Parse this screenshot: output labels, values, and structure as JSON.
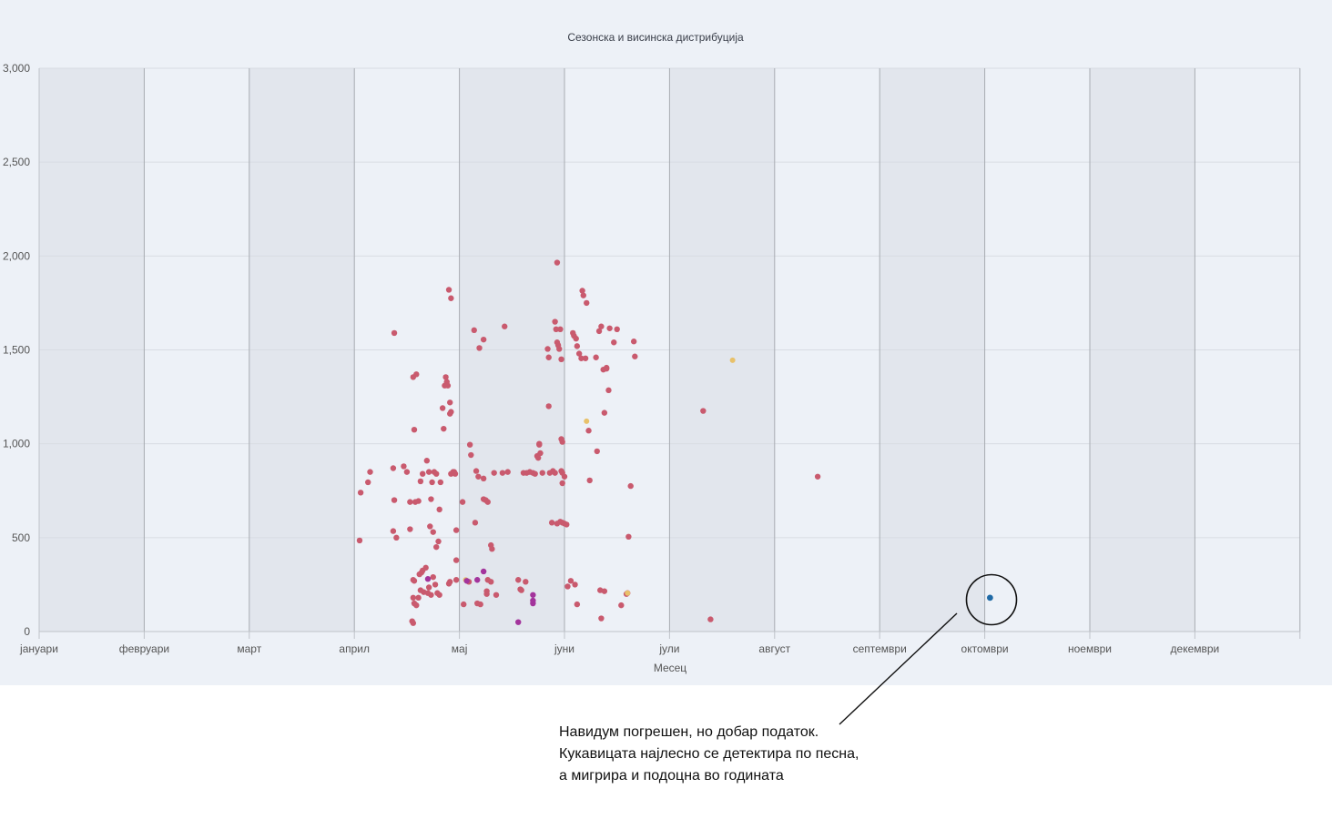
{
  "chart_data": {
    "type": "scatter",
    "title": "Сезонска и висинска дистрибуција",
    "xlabel": "Месец",
    "ylabel": "",
    "x_categories": [
      "јануари",
      "февруари",
      "март",
      "април",
      "мај",
      "јуни",
      "јули",
      "август",
      "септември",
      "октомври",
      "ноември",
      "декември"
    ],
    "xlim": [
      0,
      12
    ],
    "ylim": [
      0,
      3000
    ],
    "y_ticks": [
      0,
      500,
      1000,
      1500,
      2000,
      2500,
      3000
    ],
    "y_tick_labels": [
      "0",
      "500",
      "1,000",
      "1,500",
      "2,000",
      "2,500",
      "3,000"
    ],
    "grid": true,
    "alternating_month_bands": true,
    "legend": "none",
    "colors": {
      "default": "#c95a6e",
      "yellow": "#e8c16a",
      "purple": "#a3349c",
      "highlight": "#1f6aa6",
      "band": "#e2e6ed",
      "plot_bg": "#edf1f7",
      "grid": "#d8dce3",
      "axis": "#bfc3c9"
    },
    "points": {
      "default": [
        [
          3.06,
          740
        ],
        [
          3.05,
          485
        ],
        [
          3.13,
          795
        ],
        [
          3.15,
          850
        ],
        [
          3.37,
          535
        ],
        [
          3.4,
          500
        ],
        [
          3.37,
          870
        ],
        [
          3.47,
          880
        ],
        [
          3.5,
          850
        ],
        [
          3.38,
          700
        ],
        [
          3.53,
          690
        ],
        [
          3.58,
          690
        ],
        [
          3.61,
          695
        ],
        [
          3.53,
          545
        ],
        [
          3.38,
          1590
        ],
        [
          3.56,
          1355
        ],
        [
          3.59,
          1370
        ],
        [
          3.57,
          1075
        ],
        [
          3.63,
          800
        ],
        [
          3.65,
          840
        ],
        [
          3.69,
          910
        ],
        [
          3.71,
          850
        ],
        [
          3.74,
          795
        ],
        [
          3.76,
          850
        ],
        [
          3.78,
          840
        ],
        [
          3.72,
          560
        ],
        [
          3.73,
          705
        ],
        [
          3.75,
          530
        ],
        [
          3.78,
          450
        ],
        [
          3.8,
          480
        ],
        [
          3.81,
          650
        ],
        [
          3.82,
          795
        ],
        [
          3.85,
          1080
        ],
        [
          3.84,
          1190
        ],
        [
          3.86,
          1310
        ],
        [
          3.88,
          1330
        ],
        [
          3.87,
          1355
        ],
        [
          3.89,
          1310
        ],
        [
          3.91,
          1220
        ],
        [
          3.92,
          1170
        ],
        [
          3.91,
          1160
        ],
        [
          3.9,
          1820
        ],
        [
          3.92,
          1775
        ],
        [
          3.92,
          840
        ],
        [
          3.94,
          850
        ],
        [
          3.95,
          850
        ],
        [
          3.96,
          840
        ],
        [
          3.97,
          540
        ],
        [
          3.97,
          380
        ],
        [
          3.56,
          275
        ],
        [
          3.57,
          270
        ],
        [
          3.62,
          305
        ],
        [
          3.64,
          315
        ],
        [
          3.65,
          325
        ],
        [
          3.63,
          220
        ],
        [
          3.66,
          210
        ],
        [
          3.68,
          340
        ],
        [
          3.7,
          205
        ],
        [
          3.71,
          235
        ],
        [
          3.73,
          195
        ],
        [
          3.75,
          290
        ],
        [
          3.77,
          250
        ],
        [
          3.79,
          205
        ],
        [
          3.81,
          195
        ],
        [
          3.56,
          180
        ],
        [
          3.57,
          150
        ],
        [
          3.59,
          140
        ],
        [
          3.61,
          180
        ],
        [
          3.55,
          55
        ],
        [
          3.56,
          45
        ],
        [
          3.9,
          255
        ],
        [
          3.91,
          265
        ],
        [
          3.97,
          275
        ],
        [
          4.03,
          690
        ],
        [
          4.04,
          145
        ],
        [
          4.09,
          265
        ],
        [
          4.11,
          940
        ],
        [
          4.1,
          995
        ],
        [
          4.15,
          580
        ],
        [
          4.16,
          855
        ],
        [
          4.18,
          825
        ],
        [
          4.14,
          1605
        ],
        [
          4.19,
          1510
        ],
        [
          4.23,
          1555
        ],
        [
          4.17,
          150
        ],
        [
          4.2,
          145
        ],
        [
          4.23,
          705
        ],
        [
          4.25,
          700
        ],
        [
          4.27,
          690
        ],
        [
          4.23,
          815
        ],
        [
          4.3,
          460
        ],
        [
          4.31,
          440
        ],
        [
          4.27,
          275
        ],
        [
          4.3,
          265
        ],
        [
          4.35,
          195
        ],
        [
          4.26,
          215
        ],
        [
          4.26,
          200
        ],
        [
          4.33,
          845
        ],
        [
          4.41,
          845
        ],
        [
          4.46,
          850
        ],
        [
          4.43,
          1625
        ],
        [
          4.56,
          275
        ],
        [
          4.63,
          265
        ],
        [
          4.58,
          225
        ],
        [
          4.59,
          220
        ],
        [
          4.61,
          845
        ],
        [
          4.64,
          845
        ],
        [
          4.67,
          850
        ],
        [
          4.7,
          845
        ],
        [
          4.72,
          840
        ],
        [
          4.74,
          935
        ],
        [
          4.75,
          925
        ],
        [
          4.76,
          995
        ],
        [
          4.76,
          1000
        ],
        [
          4.77,
          950
        ],
        [
          4.79,
          845
        ],
        [
          4.86,
          845
        ],
        [
          4.89,
          855
        ],
        [
          4.91,
          845
        ],
        [
          4.97,
          1025
        ],
        [
          4.98,
          1010
        ],
        [
          4.97,
          855
        ],
        [
          4.98,
          845
        ],
        [
          5.0,
          825
        ],
        [
          4.98,
          790
        ],
        [
          4.98,
          580
        ],
        [
          5.0,
          575
        ],
        [
          5.02,
          570
        ],
        [
          4.88,
          580
        ],
        [
          4.93,
          575
        ],
        [
          4.96,
          585
        ],
        [
          4.84,
          1505
        ],
        [
          4.85,
          1460
        ],
        [
          4.85,
          1200
        ],
        [
          4.96,
          1610
        ],
        [
          4.91,
          1650
        ],
        [
          4.92,
          1610
        ],
        [
          4.93,
          1540
        ],
        [
          4.94,
          1525
        ],
        [
          4.95,
          1505
        ],
        [
          4.97,
          1450
        ],
        [
          4.93,
          1965
        ],
        [
          5.03,
          240
        ],
        [
          5.06,
          270
        ],
        [
          5.1,
          250
        ],
        [
          5.12,
          145
        ],
        [
          5.08,
          1590
        ],
        [
          5.09,
          1575
        ],
        [
          5.11,
          1560
        ],
        [
          5.12,
          1520
        ],
        [
          5.14,
          1480
        ],
        [
          5.16,
          1455
        ],
        [
          5.17,
          1815
        ],
        [
          5.18,
          1790
        ],
        [
          5.2,
          1455
        ],
        [
          5.21,
          1750
        ],
        [
          5.23,
          1070
        ],
        [
          5.24,
          805
        ],
        [
          5.3,
          1460
        ],
        [
          5.31,
          960
        ],
        [
          5.33,
          1600
        ],
        [
          5.35,
          1625
        ],
        [
          5.37,
          1395
        ],
        [
          5.4,
          1400
        ],
        [
          5.43,
          1615
        ],
        [
          5.47,
          1540
        ],
        [
          5.5,
          1610
        ],
        [
          5.38,
          1165
        ],
        [
          5.42,
          1285
        ],
        [
          5.4,
          1405
        ],
        [
          5.34,
          220
        ],
        [
          5.38,
          215
        ],
        [
          5.35,
          70
        ],
        [
          5.54,
          140
        ],
        [
          5.59,
          200
        ],
        [
          5.61,
          505
        ],
        [
          5.63,
          775
        ],
        [
          5.66,
          1545
        ],
        [
          5.67,
          1465
        ],
        [
          5.6,
          205
        ],
        [
          6.32,
          1175
        ],
        [
          6.39,
          65
        ],
        [
          7.41,
          825
        ]
      ],
      "yellow": [
        [
          4.06,
          275
        ],
        [
          5.21,
          1120
        ],
        [
          5.6,
          205
        ],
        [
          6.6,
          1445
        ]
      ],
      "purple": [
        [
          3.7,
          280
        ],
        [
          4.07,
          270
        ],
        [
          4.17,
          275
        ],
        [
          4.23,
          320
        ],
        [
          4.7,
          195
        ],
        [
          4.7,
          165
        ],
        [
          4.7,
          150
        ],
        [
          4.56,
          50
        ]
      ],
      "highlight": [
        [
          9.05,
          180
        ]
      ]
    },
    "annotation": {
      "lines": [
        "Навидум погрешен, но добар податок.",
        "Кукавицата најлесно се детектира по песна,",
        "а мигрира и подоцна во годината"
      ]
    }
  }
}
